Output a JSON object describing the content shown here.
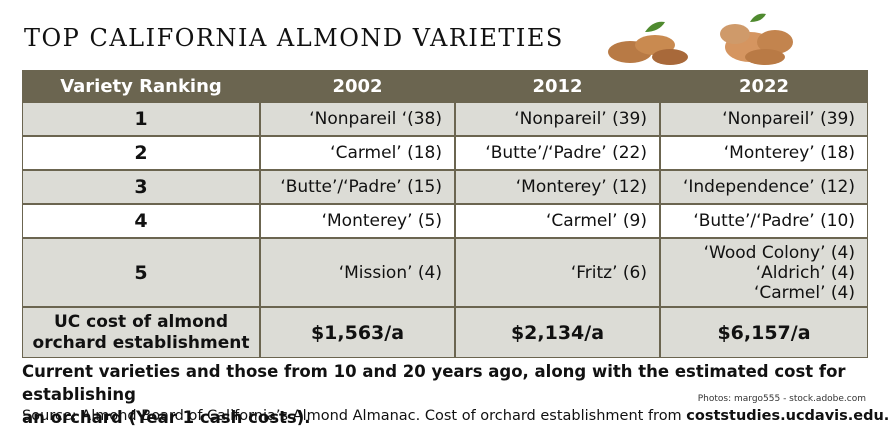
{
  "header": {
    "title": "TOP CALIFORNIA ALMOND VARIETIES"
  },
  "table": {
    "columns": [
      "Variety Ranking",
      "2002",
      "2012",
      "2022"
    ],
    "rows": [
      [
        "1",
        "‘Nonpareil ‘(38)",
        "‘Nonpareil’ (39)",
        "‘Nonpareil’ (39)"
      ],
      [
        "2",
        "‘Carmel’ (18)",
        "‘Butte’/‘Padre’ (22)",
        "‘Monterey’ (18)"
      ],
      [
        "3",
        "‘Butte’/‘Padre’ (15)",
        "‘Monterey’ (12)",
        "‘Independence’ (12)"
      ],
      [
        "4",
        "‘Monterey’ (5)",
        "‘Carmel’ (9)",
        "‘Butte’/‘Padre’ (10)"
      ],
      [
        "5",
        "‘Mission’ (4)",
        "‘Fritz’ (6)",
        [
          "‘Wood Colony’ (4)",
          "‘Aldrich’ (4)",
          "‘Carmel’ (4)"
        ]
      ]
    ],
    "cost_row": {
      "label": [
        "UC cost of almond",
        "orchard establishment"
      ],
      "values": [
        "$1,563/a",
        "$2,134/a",
        "$6,157/a"
      ]
    }
  },
  "photo_credit": "Photos: margo555 - stock.adobe.com",
  "caption": [
    "Current varieties and those from 10 and 20 years ago, along with the estimated cost for establishing",
    "an orchard (Year 1 cash costs)."
  ],
  "source": {
    "text": "Source: Almond Board of California’s Almond Almanac. Cost of orchard establishment from ",
    "link": "coststudies.ucdavis.edu."
  }
}
